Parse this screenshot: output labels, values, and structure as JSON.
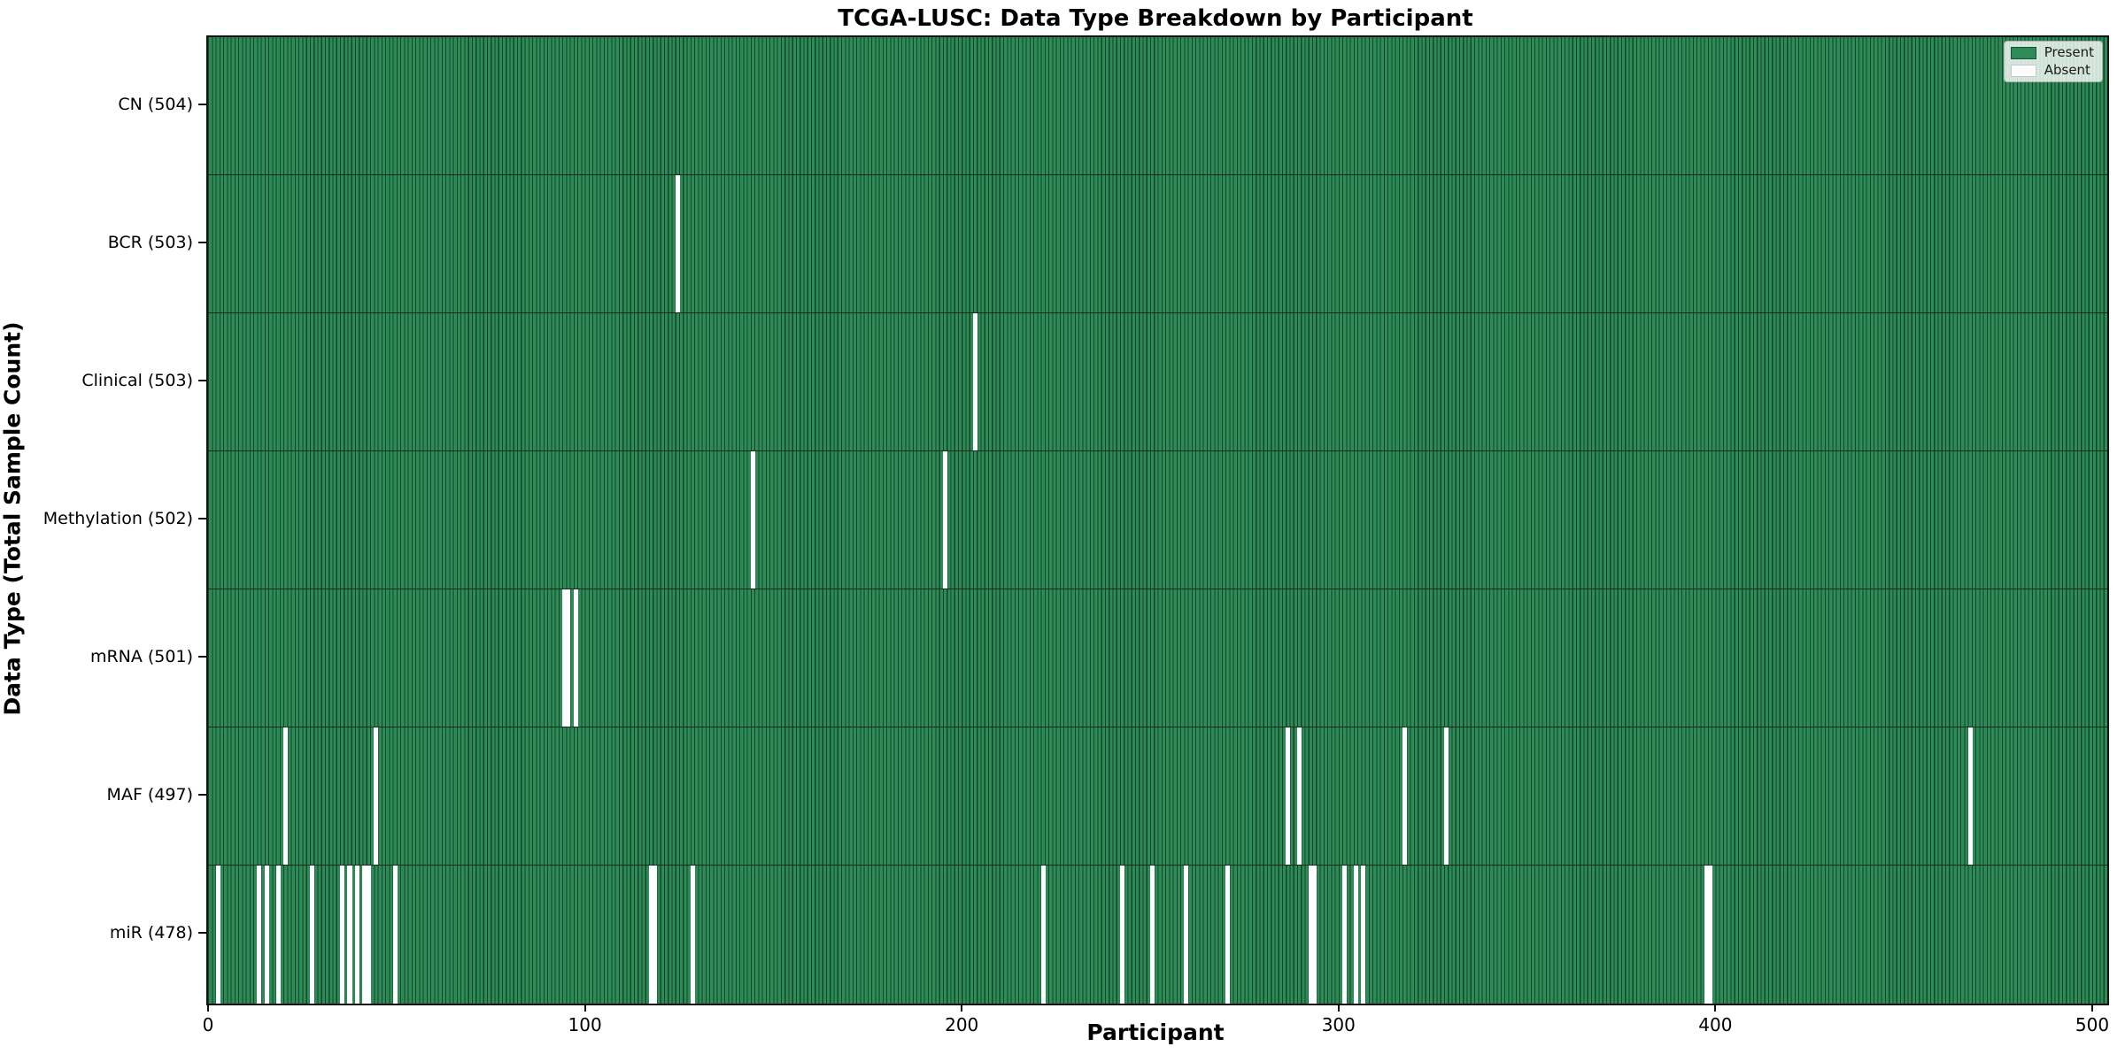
{
  "title": "TCGA-LUSC: Data Type Breakdown by Participant",
  "axes": {
    "xlabel": "Participant",
    "ylabel": "Data Type (Total Sample Count)"
  },
  "legend": {
    "present_label": "Present",
    "absent_label": "Absent"
  },
  "colors": {
    "present": "#2e8b57",
    "present_edge": "#12452a",
    "absent": "#ffffff",
    "row_separator": "#0a190f",
    "plot_border": "#111111"
  },
  "chart_data": {
    "type": "heatmap",
    "title": "TCGA-LUSC: Data Type Breakdown by Participant",
    "xlabel": "Participant",
    "ylabel": "Data Type (Total Sample Count)",
    "legend": [
      "Present",
      "Absent"
    ],
    "legend_position": "upper right",
    "n_participants": 504,
    "x_range": [
      0,
      504
    ],
    "x_ticks": [
      0,
      100,
      200,
      300,
      400,
      500
    ],
    "cell_values": {
      "present": 1,
      "absent": 0
    },
    "rows": [
      {
        "label": "CN (504)",
        "data_type": "CN",
        "total": 504,
        "absent_count": 0,
        "absent_participants": []
      },
      {
        "label": "BCR (503)",
        "data_type": "BCR",
        "total": 503,
        "absent_count": 1,
        "absent_participants": [
          124
        ]
      },
      {
        "label": "Clinical (503)",
        "data_type": "Clinical",
        "total": 503,
        "absent_count": 1,
        "absent_participants": [
          203
        ]
      },
      {
        "label": "Methylation (502)",
        "data_type": "Methylation",
        "total": 502,
        "absent_count": 2,
        "absent_participants": [
          144,
          195
        ]
      },
      {
        "label": "mRNA (501)",
        "data_type": "mRNA",
        "total": 501,
        "absent_count": 3,
        "absent_participants": [
          94,
          95,
          97
        ]
      },
      {
        "label": "MAF (497)",
        "data_type": "MAF",
        "total": 497,
        "absent_count": 7,
        "absent_participants": [
          20,
          44,
          286,
          289,
          317,
          328,
          467
        ]
      },
      {
        "label": "miR (478)",
        "data_type": "miR",
        "total": 478,
        "absent_count": 26,
        "absent_participants": [
          2,
          13,
          15,
          18,
          27,
          35,
          37,
          39,
          41,
          42,
          49,
          117,
          118,
          128,
          221,
          242,
          250,
          259,
          270,
          292,
          293,
          301,
          304,
          306,
          397,
          398
        ]
      }
    ]
  }
}
